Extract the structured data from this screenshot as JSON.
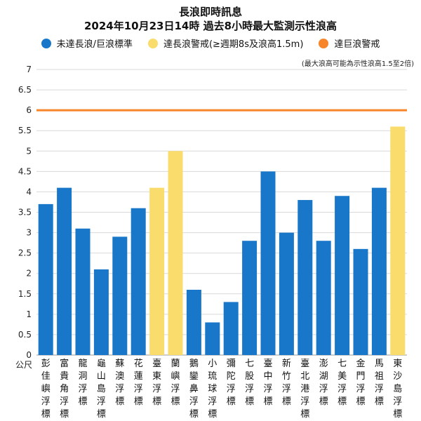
{
  "header": {
    "title_line1": "長浪即時訊息",
    "title_line2": "2024年10月23日14時 過去8小時最大監測示性浪高",
    "note": "(最大浪高可能為示性浪高1.5至2倍)"
  },
  "legend": [
    {
      "label": "未達長浪/巨浪標準",
      "color": "#1877c9"
    },
    {
      "label": "達長浪警戒(≥週期8s及浪高1.5m)",
      "color": "#f9dc6b"
    },
    {
      "label": "達巨浪警戒",
      "color": "#f7852a"
    }
  ],
  "chart_data": {
    "type": "bar",
    "ylabel": "公尺",
    "ylim": [
      0,
      7
    ],
    "yticks": [
      "0",
      "0.5",
      "1",
      "1.5",
      "2",
      "2.5",
      "3",
      "3.5",
      "4",
      "4.5",
      "5",
      "5.5",
      "6",
      "6.5",
      "7"
    ],
    "grid": true,
    "threshold": {
      "value": 6,
      "color": "#f7852a"
    },
    "categories": [
      "彭佳嶼浮標",
      "富貴角浮標",
      "龍洞浮標",
      "龜山島浮標",
      "蘇澳浮標",
      "花蓮浮標",
      "臺東浮標",
      "蘭嶼浮標",
      "鵝鑾鼻浮標",
      "小琉球浮標",
      "彌陀浮標",
      "七股浮標",
      "臺中浮標",
      "新竹浮標",
      "臺北港浮標",
      "澎湖浮標",
      "七美浮標",
      "金門浮標",
      "馬祖浮標",
      "東沙島浮標"
    ],
    "values": [
      3.7,
      4.1,
      3.1,
      2.1,
      2.9,
      3.6,
      4.1,
      5.0,
      1.6,
      0.8,
      1.3,
      2.8,
      4.5,
      3.0,
      3.8,
      2.8,
      3.9,
      2.6,
      4.1,
      5.6
    ],
    "status": [
      "normal",
      "normal",
      "normal",
      "normal",
      "normal",
      "normal",
      "swell",
      "swell",
      "normal",
      "normal",
      "normal",
      "normal",
      "normal",
      "normal",
      "normal",
      "normal",
      "normal",
      "normal",
      "normal",
      "swell"
    ],
    "colors": {
      "normal": "#1877c9",
      "swell": "#f9dc6b"
    }
  }
}
